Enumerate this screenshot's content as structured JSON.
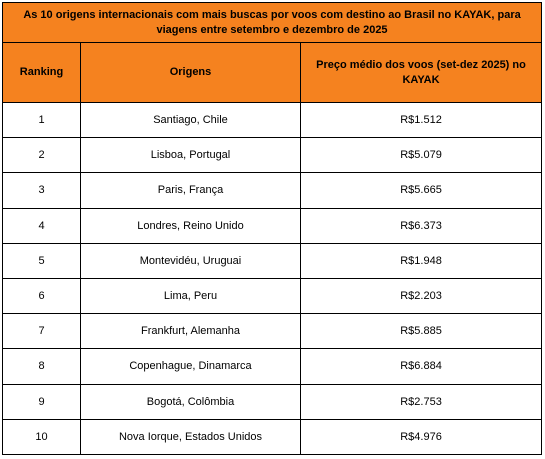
{
  "table": {
    "title": "As 10 origens internacionais com mais buscas por voos com destino ao Brasil no KAYAK, para viagens entre setembro e dezembro de 2025",
    "headers": [
      "Ranking",
      "Origens",
      "Preço médio dos voos (set-dez 2025) no KAYAK"
    ],
    "rows": [
      [
        "1",
        "Santiago, Chile",
        "R$1.512"
      ],
      [
        "2",
        "Lisboa, Portugal",
        "R$5.079"
      ],
      [
        "3",
        "Paris, França",
        "R$5.665"
      ],
      [
        "4",
        "Londres, Reino Unido",
        "R$6.373"
      ],
      [
        "5",
        "Montevidéu, Uruguai",
        "R$1.948"
      ],
      [
        "6",
        "Lima, Peru",
        "R$2.203"
      ],
      [
        "7",
        "Frankfurt, Alemanha",
        "R$5.885"
      ],
      [
        "8",
        "Copenhague, Dinamarca",
        "R$6.884"
      ],
      [
        "9",
        "Bogotá, Colômbia",
        "R$2.753"
      ],
      [
        "10",
        "Nova Iorque, Estados Unidos",
        "R$4.976"
      ]
    ]
  }
}
